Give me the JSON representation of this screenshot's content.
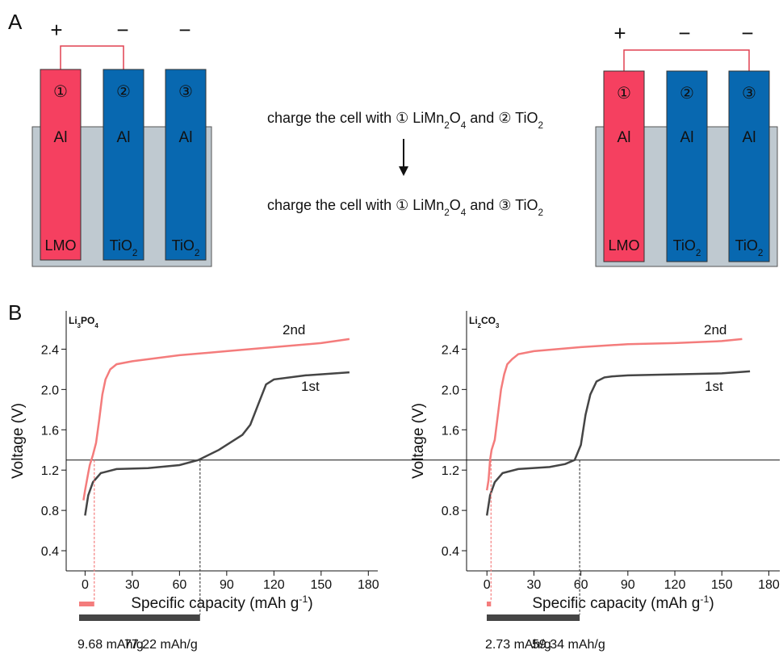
{
  "panel_labels": [
    "A",
    "B"
  ],
  "diagram": {
    "cells": [
      {
        "signs": [
          "+",
          "−",
          "−"
        ],
        "electrodes": [
          {
            "number": "①",
            "metal": "Al",
            "material": [
              "LMO"
            ]
          },
          {
            "number": "②",
            "metal": "Al",
            "material": [
              "TiO",
              "2"
            ]
          },
          {
            "number": "③",
            "metal": "Al",
            "material": [
              "TiO",
              "2"
            ]
          }
        ]
      },
      {
        "signs": [
          "+",
          "−",
          "−"
        ],
        "electrodes": [
          {
            "number": "①",
            "metal": "Al",
            "material": [
              "LMO"
            ]
          },
          {
            "number": "②",
            "metal": "Al",
            "material": [
              "TiO",
              "2"
            ]
          },
          {
            "number": "③",
            "metal": "Al",
            "material": [
              "TiO",
              "2"
            ]
          }
        ]
      }
    ],
    "steps": [
      [
        "charge the cell with ① LiMn",
        "2",
        "O",
        "4",
        " and ② TiO",
        "2"
      ],
      [
        "charge the cell with ① LiMn",
        "2",
        "O",
        "4",
        " and ③ TiO",
        "2"
      ]
    ]
  },
  "chart_data": [
    {
      "type": "line",
      "title": [
        "Li",
        "3",
        "PO",
        "4"
      ],
      "x_label": [
        "Specific capacity (mAh g",
        "-1",
        ")"
      ],
      "y_label": "Voltage (V)",
      "xlim": [
        -12,
        186
      ],
      "ylim": [
        0.2,
        2.78
      ],
      "xticks": [
        0,
        30,
        60,
        90,
        120,
        150,
        180
      ],
      "yticks": [
        0.4,
        0.8,
        1.2,
        1.6,
        {
          "value": 2,
          "label": "2.0"
        },
        2.4
      ],
      "reference_y": 1.3,
      "series": [
        {
          "name": "2nd",
          "color": "#f47c7c",
          "x": [
            -1,
            0,
            2,
            3,
            5,
            7,
            9,
            11,
            13,
            16,
            20,
            30,
            60,
            90,
            120,
            150,
            168
          ],
          "values": [
            0.9,
            1.0,
            1.17,
            1.25,
            1.35,
            1.47,
            1.7,
            1.95,
            2.1,
            2.2,
            2.25,
            2.28,
            2.34,
            2.38,
            2.42,
            2.46,
            2.5
          ]
        },
        {
          "name": "1st",
          "color": "#454545",
          "x": [
            0,
            2,
            5,
            10,
            20,
            40,
            60,
            72,
            85,
            100,
            105,
            110,
            115,
            120,
            140,
            168
          ],
          "values": [
            0.75,
            0.95,
            1.08,
            1.17,
            1.21,
            1.22,
            1.25,
            1.3,
            1.4,
            1.55,
            1.65,
            1.85,
            2.05,
            2.1,
            2.14,
            2.17
          ]
        }
      ],
      "capacities": {
        "values": [
          9.68,
          77.22
        ],
        "value_labels": [
          "9.68 mAh/g",
          "77.22 mAh/g"
        ],
        "colors": [
          "#f47c7c",
          "#454545"
        ]
      }
    },
    {
      "type": "line",
      "title": [
        "Li",
        "2",
        "CO",
        "3"
      ],
      "x_label": [
        "Specific capacity (mAh g",
        "-1",
        ")"
      ],
      "y_label": "Voltage (V)",
      "xlim": [
        -13,
        187
      ],
      "ylim": [
        0.2,
        2.78
      ],
      "xticks": [
        0,
        30,
        60,
        90,
        120,
        150,
        180
      ],
      "yticks": [
        0.4,
        0.8,
        1.2,
        1.6,
        {
          "value": 2,
          "label": "2.0"
        },
        2.4
      ],
      "reference_y": 1.3,
      "series": [
        {
          "name": "2nd",
          "color": "#f47c7c",
          "x": [
            0,
            1,
            2,
            3,
            5,
            7,
            9,
            11,
            13,
            16,
            20,
            30,
            60,
            90,
            120,
            150,
            163
          ],
          "values": [
            1.0,
            1.1,
            1.3,
            1.4,
            1.5,
            1.75,
            2.0,
            2.15,
            2.25,
            2.3,
            2.35,
            2.38,
            2.42,
            2.45,
            2.46,
            2.48,
            2.5
          ]
        },
        {
          "name": "1st",
          "color": "#454545",
          "x": [
            0,
            2,
            5,
            10,
            20,
            40,
            50,
            56,
            60,
            63,
            66,
            70,
            75,
            80,
            90,
            120,
            150,
            168
          ],
          "values": [
            0.75,
            0.95,
            1.08,
            1.17,
            1.21,
            1.23,
            1.26,
            1.3,
            1.45,
            1.75,
            1.95,
            2.08,
            2.12,
            2.13,
            2.14,
            2.15,
            2.16,
            2.18
          ]
        }
      ],
      "capacities": {
        "values": [
          2.73,
          59.34
        ],
        "value_labels": [
          "2.73 mAh/g",
          "59.34 mAh/g"
        ],
        "colors": [
          "#f47c7c",
          "#454545"
        ]
      }
    }
  ]
}
